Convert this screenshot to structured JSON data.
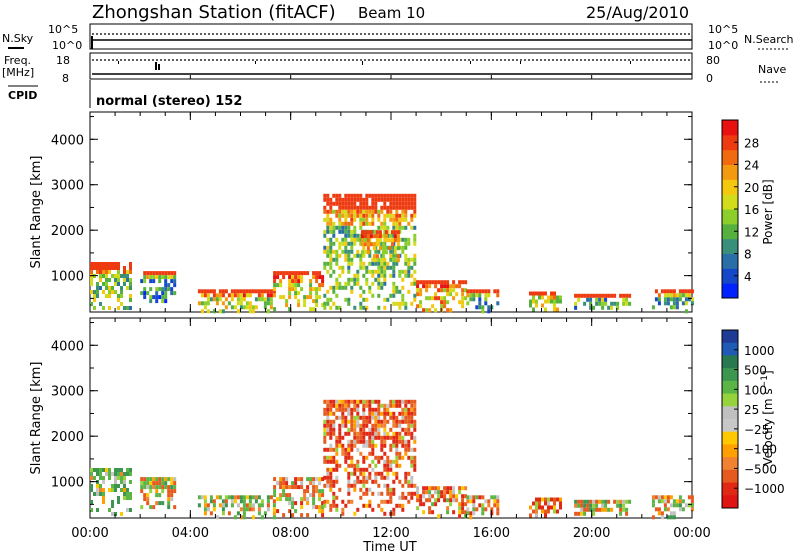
{
  "header": {
    "station": "Zhongshan Station (fitACF)",
    "beam": "Beam 10",
    "date": "25/Aug/2010"
  },
  "status_panels": {
    "nsky_label": "N.Sky",
    "nsky_ticks": [
      "10^5",
      "10^0"
    ],
    "nsearch_label": "N.Search",
    "nsearch_ticks": [
      "10^5",
      "10^0"
    ],
    "freq_label": "Freq.",
    "freq_unit": "[MHz]",
    "freq_ticks": [
      "18",
      "8"
    ],
    "nave_label": "Nave",
    "nave_ticks": [
      "80",
      "0"
    ],
    "cpid_label": "CPID",
    "cpid_text": "normal (stereo) 152"
  },
  "chart_data": [
    {
      "type": "heatmap",
      "name": "power",
      "ylabel": "Slant Range [km]",
      "yticks": [
        "1000",
        "2000",
        "3000",
        "4000"
      ],
      "ylim": [
        200,
        4600
      ],
      "xlim": [
        0,
        24
      ],
      "colorbar_label": "Power [dB]",
      "colorbar_ticks": [
        "4",
        "8",
        "12",
        "16",
        "20",
        "24",
        "28"
      ],
      "colorbar_colors": [
        "#0022ff",
        "#1448c8",
        "#2a6ea8",
        "#3a8f7a",
        "#55b040",
        "#8ccf2a",
        "#d2dc1a",
        "#f5c810",
        "#f49a10",
        "#f26a10",
        "#ee3a10",
        "#e81010"
      ],
      "regions": [
        {
          "t": [
            0.0,
            1.6
          ],
          "r": [
            250,
            1300
          ],
          "v": 14
        },
        {
          "t": [
            2.0,
            3.4
          ],
          "r": [
            400,
            1100
          ],
          "v": 8
        },
        {
          "t": [
            4.3,
            7.3
          ],
          "r": [
            250,
            700
          ],
          "v": 16
        },
        {
          "t": [
            7.3,
            9.3
          ],
          "r": [
            250,
            1100
          ],
          "v": 18
        },
        {
          "t": [
            9.3,
            13.0
          ],
          "r": [
            250,
            2800
          ],
          "v": 14
        },
        {
          "t": [
            10.8,
            12.3
          ],
          "r": [
            1300,
            2000
          ],
          "v": 19
        },
        {
          "t": [
            13.0,
            15.0
          ],
          "r": [
            250,
            900
          ],
          "v": 21
        },
        {
          "t": [
            15.0,
            16.2
          ],
          "r": [
            250,
            700
          ],
          "v": 10
        },
        {
          "t": [
            17.5,
            18.8
          ],
          "r": [
            250,
            650
          ],
          "v": 18
        },
        {
          "t": [
            19.3,
            21.5
          ],
          "r": [
            250,
            600
          ],
          "v": 12
        },
        {
          "t": [
            22.4,
            24.0
          ],
          "r": [
            250,
            700
          ],
          "v": 10
        }
      ]
    },
    {
      "type": "heatmap",
      "name": "velocity",
      "ylabel": "Slant Range [km]",
      "yticks": [
        "1000",
        "2000",
        "3000",
        "4000"
      ],
      "ylim": [
        200,
        4600
      ],
      "xlim": [
        0,
        24
      ],
      "colorbar_label": "Velocity [m s^-1]",
      "colorbar_ticks": [
        "1000",
        "500",
        "100",
        "25",
        "−25",
        "−100",
        "−500",
        "−1000"
      ],
      "colorbar_colors": [
        "#1e3c96",
        "#1f5ab4",
        "#2a7850",
        "#3c9650",
        "#5ab446",
        "#96d23c",
        "#c0c0c0",
        "#c8c8c8",
        "#ffc800",
        "#ffa000",
        "#f08232",
        "#e65a1e",
        "#e12814",
        "#e11414"
      ],
      "regions": [
        {
          "t": [
            0.0,
            1.6
          ],
          "r": [
            250,
            1300
          ],
          "v": 200
        },
        {
          "t": [
            2.0,
            3.4
          ],
          "r": [
            400,
            1100
          ],
          "v": 60
        },
        {
          "t": [
            4.3,
            7.3
          ],
          "r": [
            250,
            700
          ],
          "v": 120
        },
        {
          "t": [
            7.3,
            9.3
          ],
          "r": [
            250,
            1100
          ],
          "v": -80
        },
        {
          "t": [
            9.3,
            13.0
          ],
          "r": [
            250,
            2800
          ],
          "v": -200
        },
        {
          "t": [
            13.0,
            15.0
          ],
          "r": [
            250,
            900
          ],
          "v": -150
        },
        {
          "t": [
            15.0,
            16.2
          ],
          "r": [
            250,
            700
          ],
          "v": -100
        },
        {
          "t": [
            17.5,
            18.8
          ],
          "r": [
            250,
            650
          ],
          "v": -200
        },
        {
          "t": [
            19.3,
            21.5
          ],
          "r": [
            250,
            600
          ],
          "v": 40
        },
        {
          "t": [
            22.4,
            24.0
          ],
          "r": [
            250,
            700
          ],
          "v": 60
        }
      ]
    }
  ],
  "xaxis": {
    "label": "Time UT",
    "ticks": [
      "00:00",
      "04:00",
      "08:00",
      "12:00",
      "16:00",
      "20:00",
      "00:00"
    ]
  }
}
